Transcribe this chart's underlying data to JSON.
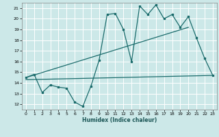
{
  "bg_color": "#cce8e8",
  "grid_color": "#ffffff",
  "line_color": "#1a6b6b",
  "xlabel": "Humidex (Indice chaleur)",
  "xlim": [
    -0.5,
    23.5
  ],
  "ylim": [
    11.5,
    21.5
  ],
  "yticks": [
    12,
    13,
    14,
    15,
    16,
    17,
    18,
    19,
    20,
    21
  ],
  "xticks": [
    0,
    1,
    2,
    3,
    4,
    5,
    6,
    7,
    8,
    9,
    10,
    11,
    12,
    13,
    14,
    15,
    16,
    17,
    18,
    19,
    20,
    21,
    22,
    23
  ],
  "line1_x": [
    0,
    1,
    2,
    3,
    4,
    5,
    6,
    7,
    8,
    9,
    10,
    11,
    12,
    13,
    14,
    15,
    16,
    17,
    18,
    19,
    20,
    21,
    22,
    23
  ],
  "line1_y": [
    14.5,
    14.8,
    13.1,
    13.8,
    13.6,
    13.5,
    12.2,
    11.8,
    13.7,
    16.1,
    20.4,
    20.5,
    19.0,
    16.0,
    21.2,
    20.4,
    21.3,
    20.0,
    20.4,
    19.2,
    20.2,
    18.2,
    16.3,
    14.7
  ],
  "line2_x": [
    0,
    20
  ],
  "line2_y": [
    14.5,
    19.2
  ],
  "line3_x": [
    0,
    23
  ],
  "line3_y": [
    14.3,
    14.7
  ],
  "figsize": [
    3.2,
    2.0
  ],
  "dpi": 100
}
